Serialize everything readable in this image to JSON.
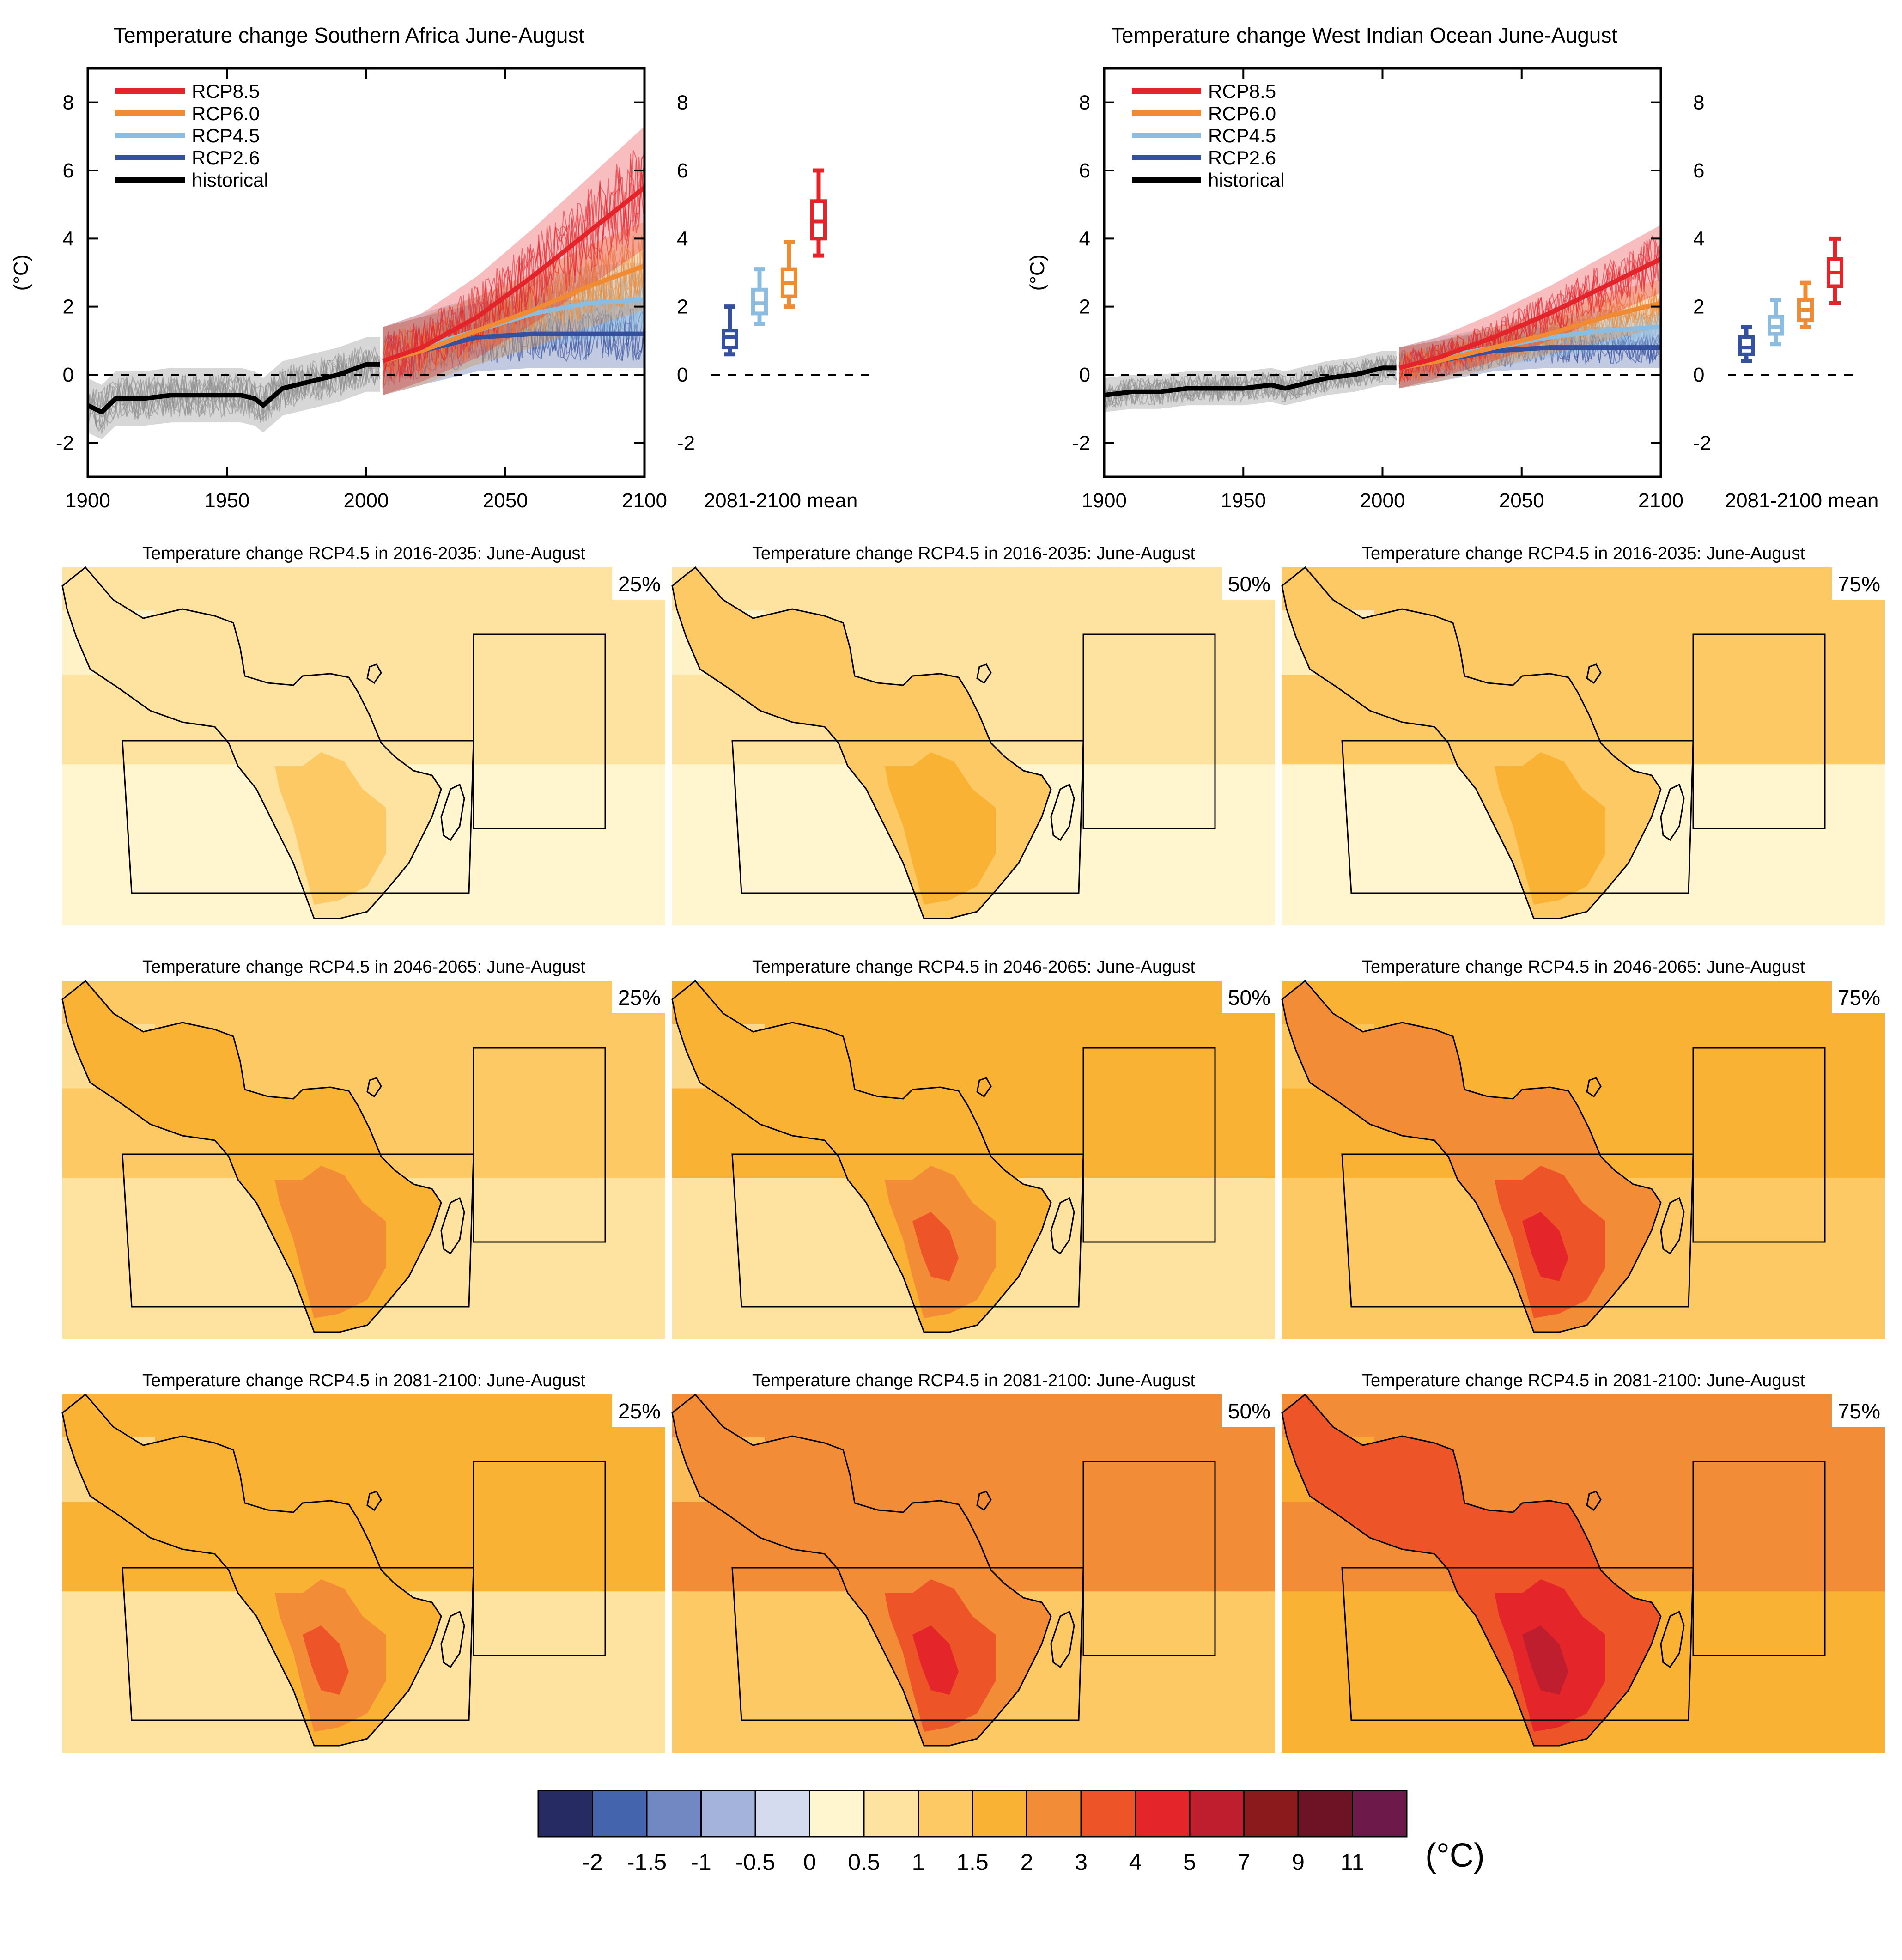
{
  "colors": {
    "rcp85": "#e3242b",
    "rcp60": "#f08a33",
    "rcp45": "#8cbde0",
    "rcp26": "#35509e",
    "historical": "#000000",
    "historical_spread": "#8c8c8c"
  },
  "chart_data": [
    {
      "type": "line",
      "title": "Temperature change Southern Africa June-August",
      "ylabel": "(°C)",
      "xlabel": "",
      "xlim": [
        1900,
        2100
      ],
      "ylim": [
        -3,
        9
      ],
      "xticks": [
        "1900",
        "1950",
        "2000",
        "2050",
        "2100"
      ],
      "yticks": [
        "-2",
        "0",
        "2",
        "4",
        "6",
        "8"
      ],
      "series": [
        {
          "name": "RCP8.5",
          "x": [
            2006,
            2020,
            2040,
            2060,
            2080,
            2100
          ],
          "values": [
            0.4,
            0.8,
            1.7,
            2.9,
            4.2,
            5.5
          ],
          "spread": [
            1.0,
            1.0,
            1.2,
            1.4,
            1.6,
            1.8
          ]
        },
        {
          "name": "RCP6.0",
          "x": [
            2006,
            2020,
            2040,
            2060,
            2080,
            2100
          ],
          "values": [
            0.4,
            0.7,
            1.3,
            1.9,
            2.6,
            3.2
          ],
          "spread": [
            1.0,
            1.0,
            1.0,
            1.1,
            1.2,
            1.3
          ]
        },
        {
          "name": "RCP4.5",
          "x": [
            2006,
            2020,
            2040,
            2060,
            2080,
            2100
          ],
          "values": [
            0.4,
            0.8,
            1.3,
            1.8,
            2.1,
            2.2
          ],
          "spread": [
            1.0,
            1.0,
            1.0,
            1.0,
            1.1,
            1.1
          ]
        },
        {
          "name": "RCP2.6",
          "x": [
            2006,
            2020,
            2040,
            2060,
            2080,
            2100
          ],
          "values": [
            0.4,
            0.7,
            1.1,
            1.2,
            1.2,
            1.2
          ],
          "spread": [
            1.0,
            1.0,
            1.0,
            1.0,
            1.0,
            1.0
          ]
        },
        {
          "name": "historical",
          "x": [
            1900,
            1905,
            1910,
            1920,
            1930,
            1940,
            1950,
            1955,
            1960,
            1963,
            1970,
            1980,
            1990,
            2000,
            2005
          ],
          "values": [
            -0.9,
            -1.1,
            -0.7,
            -0.7,
            -0.6,
            -0.6,
            -0.6,
            -0.6,
            -0.7,
            -0.9,
            -0.4,
            -0.2,
            0.0,
            0.3,
            0.3
          ],
          "spread": [
            0.8,
            0.8,
            0.8,
            0.8,
            0.8,
            0.8,
            0.8,
            0.8,
            0.8,
            0.8,
            0.8,
            0.8,
            0.8,
            0.8,
            0.8
          ]
        }
      ],
      "boxplot": {
        "label": "2081-2100 mean",
        "boxes": [
          {
            "series": "RCP2.6",
            "min": 0.6,
            "q1": 0.8,
            "median": 1.1,
            "q3": 1.3,
            "max": 2.0
          },
          {
            "series": "RCP4.5",
            "min": 1.5,
            "q1": 1.8,
            "median": 2.1,
            "q3": 2.5,
            "max": 3.1
          },
          {
            "series": "RCP6.0",
            "min": 2.0,
            "q1": 2.3,
            "median": 2.7,
            "q3": 3.1,
            "max": 3.9
          },
          {
            "series": "RCP8.5",
            "min": 3.5,
            "q1": 4.0,
            "median": 4.5,
            "q3": 5.1,
            "max": 6.0
          }
        ]
      }
    },
    {
      "type": "line",
      "title": "Temperature change West Indian Ocean June-August",
      "ylabel": "(°C)",
      "xlabel": "",
      "xlim": [
        1900,
        2100
      ],
      "ylim": [
        -3,
        9
      ],
      "xticks": [
        "1900",
        "1950",
        "2000",
        "2050",
        "2100"
      ],
      "yticks": [
        "-2",
        "0",
        "2",
        "4",
        "6",
        "8"
      ],
      "series": [
        {
          "name": "RCP8.5",
          "x": [
            2006,
            2020,
            2040,
            2060,
            2080,
            2100
          ],
          "values": [
            0.2,
            0.5,
            1.1,
            1.8,
            2.6,
            3.4
          ],
          "spread": [
            0.6,
            0.6,
            0.7,
            0.8,
            0.9,
            1.0
          ]
        },
        {
          "name": "RCP6.0",
          "x": [
            2006,
            2020,
            2040,
            2060,
            2080,
            2100
          ],
          "values": [
            0.2,
            0.4,
            0.8,
            1.2,
            1.7,
            2.1
          ],
          "spread": [
            0.6,
            0.6,
            0.6,
            0.6,
            0.7,
            0.7
          ]
        },
        {
          "name": "RCP4.5",
          "x": [
            2006,
            2020,
            2040,
            2060,
            2080,
            2100
          ],
          "values": [
            0.2,
            0.5,
            0.8,
            1.1,
            1.3,
            1.4
          ],
          "spread": [
            0.6,
            0.6,
            0.6,
            0.6,
            0.6,
            0.6
          ]
        },
        {
          "name": "RCP2.6",
          "x": [
            2006,
            2020,
            2040,
            2060,
            2080,
            2100
          ],
          "values": [
            0.2,
            0.4,
            0.7,
            0.8,
            0.8,
            0.8
          ],
          "spread": [
            0.6,
            0.6,
            0.6,
            0.6,
            0.6,
            0.6
          ]
        },
        {
          "name": "historical",
          "x": [
            1900,
            1910,
            1920,
            1930,
            1940,
            1950,
            1960,
            1965,
            1970,
            1980,
            1990,
            2000,
            2005
          ],
          "values": [
            -0.6,
            -0.5,
            -0.5,
            -0.4,
            -0.4,
            -0.4,
            -0.3,
            -0.4,
            -0.3,
            -0.1,
            0.0,
            0.2,
            0.2
          ],
          "spread": [
            0.5,
            0.5,
            0.5,
            0.5,
            0.5,
            0.5,
            0.5,
            0.5,
            0.5,
            0.5,
            0.5,
            0.5,
            0.5
          ]
        }
      ],
      "boxplot": {
        "label": "2081-2100 mean",
        "boxes": [
          {
            "series": "RCP2.6",
            "min": 0.4,
            "q1": 0.6,
            "median": 0.8,
            "q3": 1.1,
            "max": 1.4
          },
          {
            "series": "RCP4.5",
            "min": 0.9,
            "q1": 1.2,
            "median": 1.4,
            "q3": 1.7,
            "max": 2.2
          },
          {
            "series": "RCP6.0",
            "min": 1.4,
            "q1": 1.6,
            "median": 1.9,
            "q3": 2.2,
            "max": 2.7
          },
          {
            "series": "RCP8.5",
            "min": 2.1,
            "q1": 2.6,
            "median": 3.0,
            "q3": 3.4,
            "max": 4.0
          }
        ]
      }
    },
    {
      "type": "heatmap",
      "panels": [
        {
          "title": "Temperature change RCP4.5 in 2016-2035: June-August",
          "percentile": "25%",
          "level": 0
        },
        {
          "title": "Temperature change RCP4.5 in 2016-2035: June-August",
          "percentile": "50%",
          "level": 1
        },
        {
          "title": "Temperature change RCP4.5 in 2016-2035: June-August",
          "percentile": "75%",
          "level": 2
        },
        {
          "title": "Temperature change RCP4.5 in 2046-2065: June-August",
          "percentile": "25%",
          "level": 3
        },
        {
          "title": "Temperature change RCP4.5 in 2046-2065: June-August",
          "percentile": "50%",
          "level": 4
        },
        {
          "title": "Temperature change RCP4.5 in 2046-2065: June-August",
          "percentile": "75%",
          "level": 5
        },
        {
          "title": "Temperature change RCP4.5 in 2081-2100: June-August",
          "percentile": "25%",
          "level": 4
        },
        {
          "title": "Temperature change RCP4.5 in 2081-2100: June-August",
          "percentile": "50%",
          "level": 6
        },
        {
          "title": "Temperature change RCP4.5 in 2081-2100: June-August",
          "percentile": "75%",
          "level": 7
        }
      ],
      "colorbar": {
        "unit": "(°C)",
        "ticks": [
          "-2",
          "-1.5",
          "-1",
          "-0.5",
          "0",
          "0.5",
          "1",
          "1.5",
          "2",
          "3",
          "4",
          "5",
          "7",
          "9",
          "11"
        ],
        "colors": [
          "#262b63",
          "#4465ad",
          "#7188c2",
          "#a3b3dc",
          "#d4dbef",
          "#fff6d0",
          "#fde2a0",
          "#fcc964",
          "#f9b233",
          "#f28c36",
          "#ed5528",
          "#e42529",
          "#bf1e2e",
          "#8b1a1d",
          "#6e1226",
          "#6d1a4a"
        ]
      }
    }
  ]
}
